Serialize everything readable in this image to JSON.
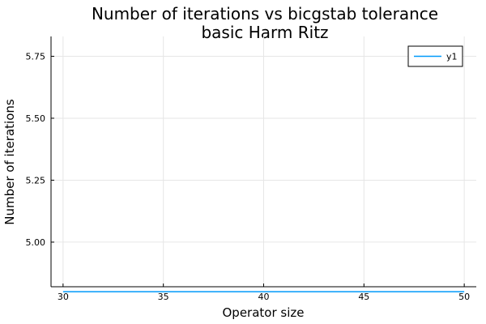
{
  "chart_data": {
    "type": "line",
    "title": "Number of iterations vs bicgstab tolerance",
    "subtitle": "basic Harm Ritz",
    "xlabel": "Operator size",
    "ylabel": "Number of iterations",
    "xlim": [
      29.4,
      50.6
    ],
    "ylim": [
      4.82,
      5.83
    ],
    "xticks": [
      30,
      35,
      40,
      45,
      50
    ],
    "xtick_labels": [
      "30",
      "35",
      "40",
      "45",
      "50"
    ],
    "yticks": [
      5.0,
      5.25,
      5.5,
      5.75
    ],
    "ytick_labels": [
      "5.00",
      "5.25",
      "5.50",
      "5.75"
    ],
    "grid": true,
    "legend_position": "top-right",
    "series": [
      {
        "name": "y1",
        "color": "#009AFA",
        "x": [
          30,
          35,
          40,
          45,
          50
        ],
        "y": [
          4.8,
          4.8,
          4.8,
          4.8,
          4.8
        ]
      }
    ]
  }
}
